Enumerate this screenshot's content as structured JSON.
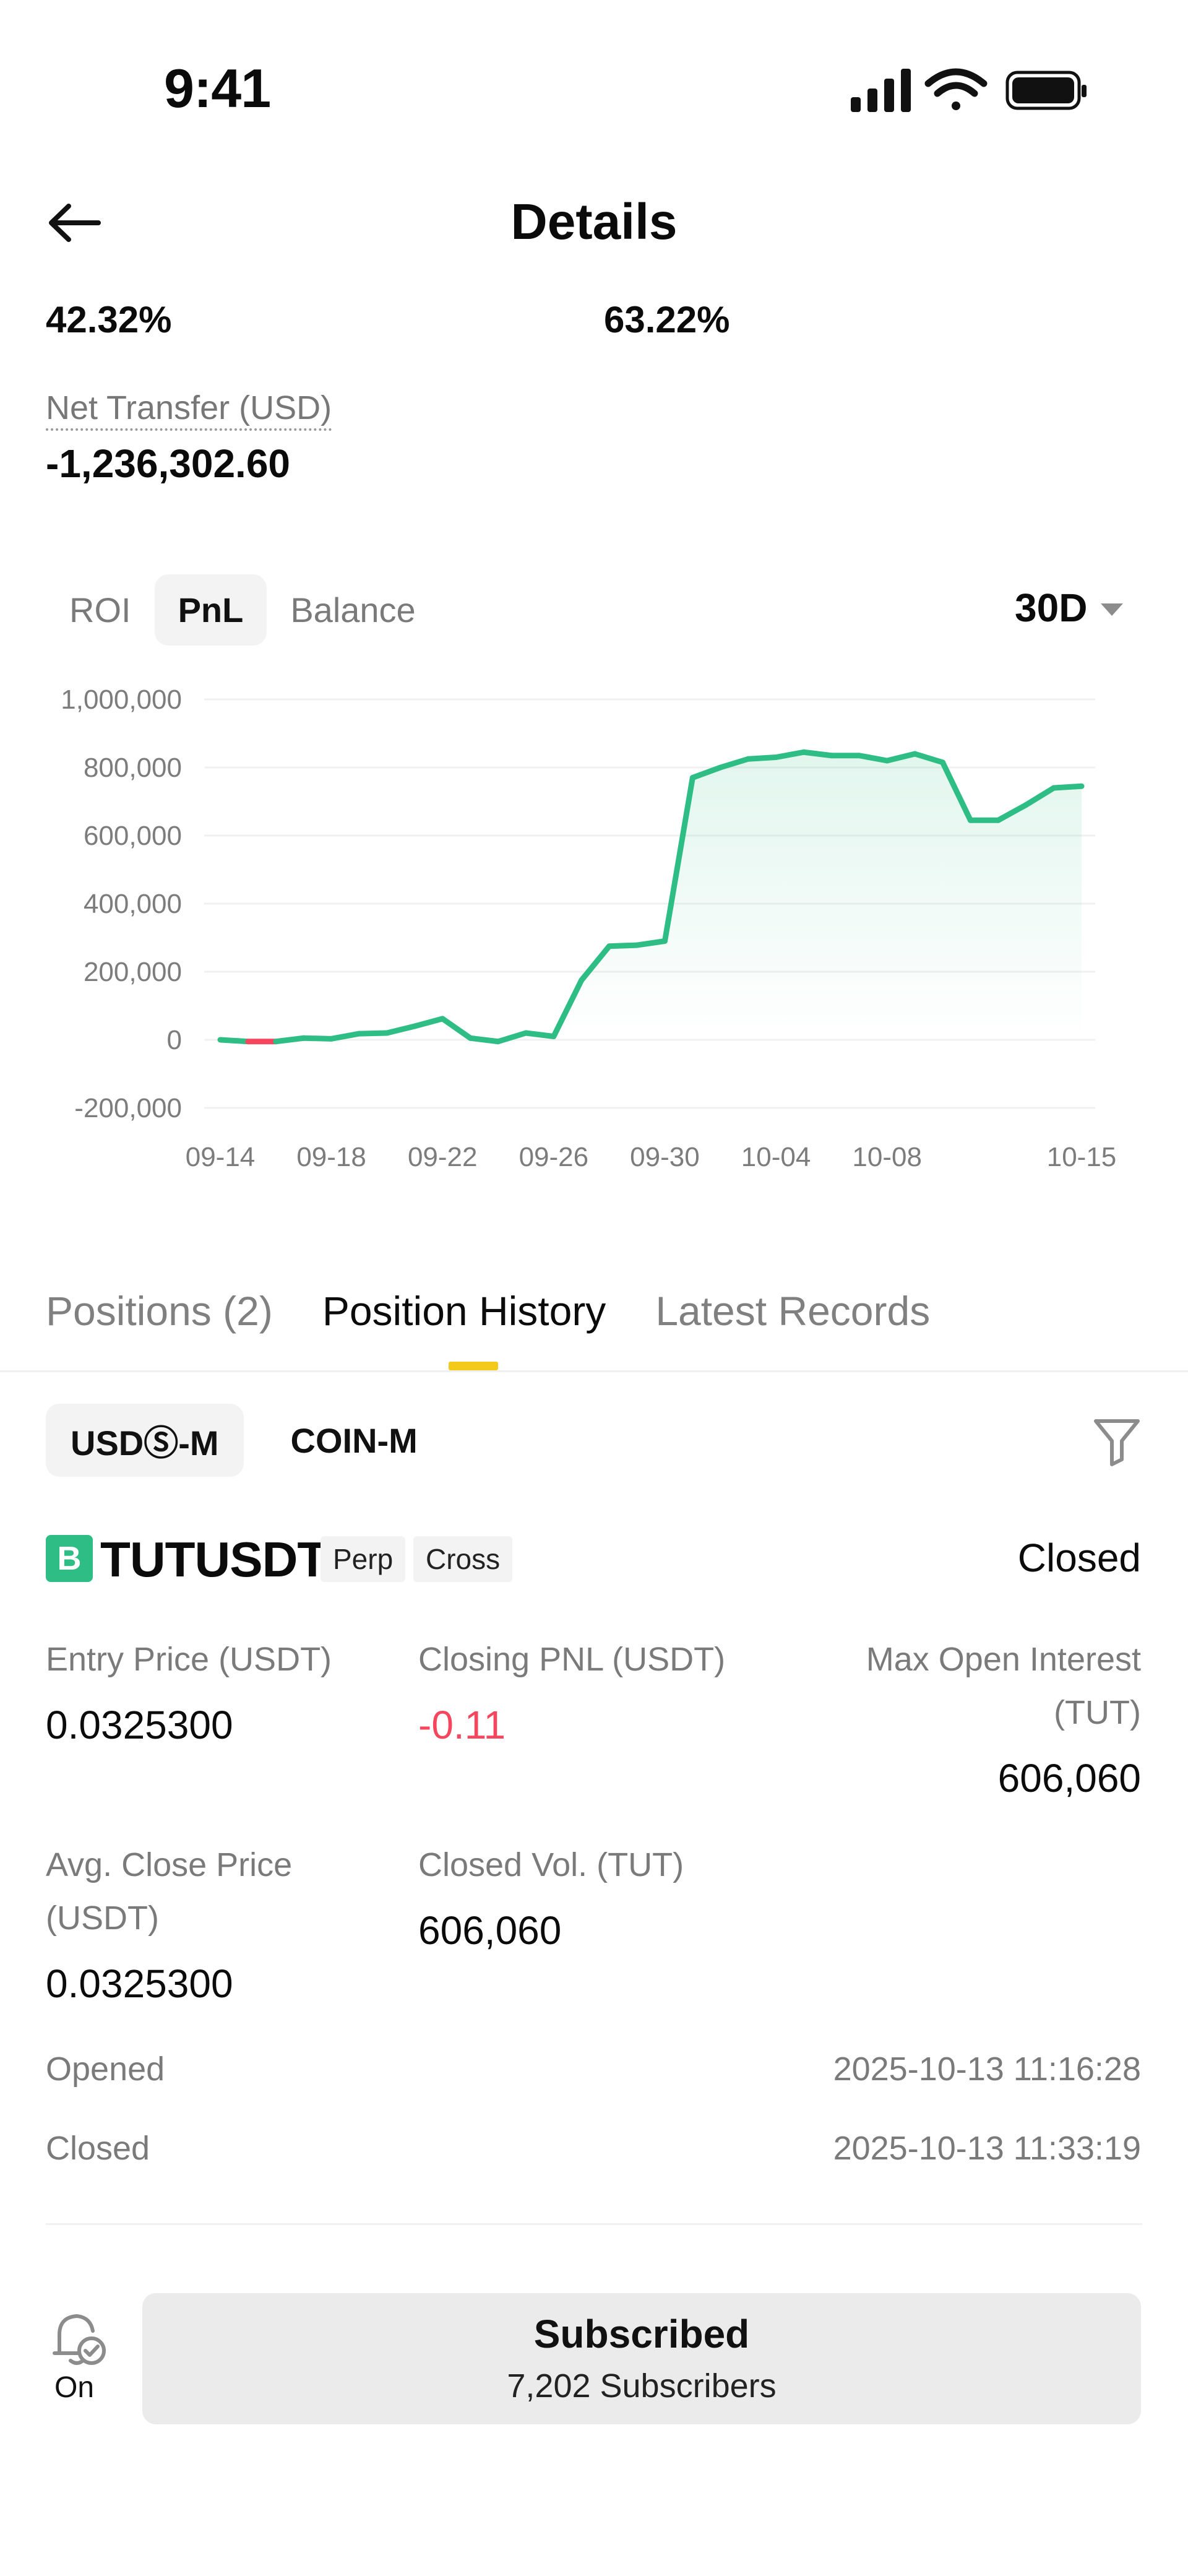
{
  "status_bar": {
    "time": "9:41"
  },
  "header": {
    "title": "Details"
  },
  "stats": {
    "left_value": "42.32%",
    "right_value": "63.22%"
  },
  "net_transfer": {
    "label": "Net Transfer (USD)",
    "value": "-1,236,302.60"
  },
  "chart_tabs": [
    "ROI",
    "PnL",
    "Balance"
  ],
  "chart_tab_active": "PnL",
  "range": {
    "selected": "30D"
  },
  "colors": {
    "positive": "#2ebd85",
    "negative": "#f6465d",
    "accent": "#f3c91a"
  },
  "chart_data": {
    "type": "area",
    "y_ticks": [
      "1,000,000",
      "800,000",
      "600,000",
      "400,000",
      "200,000",
      "0",
      "-200,000"
    ],
    "ylim": [
      -200000,
      1000000
    ],
    "x_ticks": [
      "09-14",
      "09-18",
      "09-22",
      "09-26",
      "09-30",
      "10-04",
      "10-08",
      "10-15"
    ],
    "x": [
      "09-14",
      "09-15",
      "09-16",
      "09-17",
      "09-18",
      "09-19",
      "09-20",
      "09-21",
      "09-22",
      "09-23",
      "09-24",
      "09-25",
      "09-26",
      "09-27",
      "09-28",
      "09-29",
      "09-30",
      "10-01",
      "10-02",
      "10-03",
      "10-04",
      "10-05",
      "10-06",
      "10-07",
      "10-08",
      "10-09",
      "10-10",
      "10-11",
      "10-12",
      "10-13",
      "10-14",
      "10-15"
    ],
    "values": [
      0,
      -5000,
      -5000,
      5000,
      3000,
      18000,
      20000,
      40000,
      62000,
      5000,
      -5000,
      20000,
      10000,
      175000,
      275000,
      278000,
      290000,
      770000,
      800000,
      825000,
      830000,
      845000,
      835000,
      835000,
      820000,
      840000,
      815000,
      645000,
      645000,
      690000,
      740000,
      745000
    ],
    "title": "",
    "xlabel": "",
    "ylabel": ""
  },
  "section_tabs": [
    "Positions (2)",
    "Position History",
    "Latest Records"
  ],
  "segment": [
    "USDⓈ-M",
    "COIN-M"
  ],
  "position": {
    "side_badge": "B",
    "symbol": "TUTUSDT",
    "tags": [
      "Perp",
      "Cross"
    ],
    "status": "Closed",
    "entry_price_label": "Entry Price (USDT)",
    "entry_price": "0.0325300",
    "closing_pnl_label": "Closing PNL (USDT)",
    "closing_pnl": "-0.11",
    "max_oi_label_1": "Max Open Interest",
    "max_oi_label_2": "(TUT)",
    "max_oi": "606,060",
    "avg_close_label_1": "Avg. Close Price",
    "avg_close_label_2": "(USDT)",
    "avg_close": "0.0325300",
    "closed_vol_label": "Closed Vol. (TUT)",
    "closed_vol": "606,060",
    "opened_label": "Opened",
    "opened_time": "2025-10-13 11:16:28",
    "closed_label": "Closed",
    "closed_time": "2025-10-13 11:33:19"
  },
  "footer": {
    "bell_label": "On",
    "subscribe_title": "Subscribed",
    "subscribe_count": "7,202 Subscribers"
  }
}
